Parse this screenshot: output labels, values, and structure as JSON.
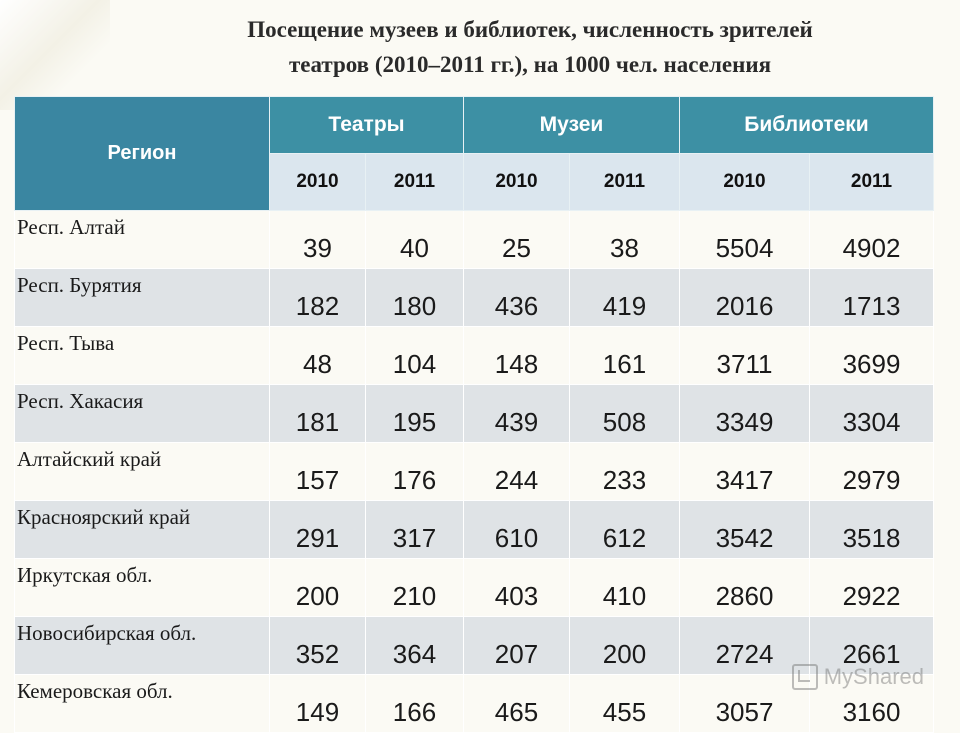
{
  "title": {
    "line1": "Посещение музеев и библиотек, численность зрителей",
    "line2": "театров (2010–2011 гг.), на 1000 чел. населения"
  },
  "table": {
    "region_header": "Регион",
    "groups": [
      "Театры",
      "Музеи",
      "Библиотеки"
    ],
    "years": [
      "2010",
      "2011",
      "2010",
      "2011",
      "2010",
      "2011"
    ],
    "rows": [
      {
        "region": "Респ. Алтай",
        "values": [
          "39",
          "40",
          "25",
          "38",
          "5504",
          "4902"
        ]
      },
      {
        "region": "Респ. Бурятия",
        "values": [
          "182",
          "180",
          "436",
          "419",
          "2016",
          "1713"
        ]
      },
      {
        "region": "Респ. Тыва",
        "values": [
          "48",
          "104",
          "148",
          "161",
          "3711",
          "3699"
        ]
      },
      {
        "region": "Респ. Хакасия",
        "values": [
          "181",
          "195",
          "439",
          "508",
          "3349",
          "3304"
        ]
      },
      {
        "region": "Алтайский край",
        "values": [
          "157",
          "176",
          "244",
          "233",
          "3417",
          "2979"
        ]
      },
      {
        "region": "Красноярский край",
        "values": [
          "291",
          "317",
          "610",
          "612",
          "3542",
          "3518"
        ]
      },
      {
        "region": "Иркутская обл.",
        "values": [
          "200",
          "210",
          "403",
          "410",
          "2860",
          "2922"
        ]
      },
      {
        "region": "Новосибирская обл.",
        "values": [
          "352",
          "364",
          "207",
          "200",
          "2724",
          "2661"
        ]
      },
      {
        "region": "Кемеровская обл.",
        "values": [
          "149",
          "166",
          "465",
          "455",
          "3057",
          "3160"
        ]
      }
    ]
  },
  "watermark": "MyShared",
  "colors": {
    "header": "#3d90a4",
    "year_row": "#dbe6ee",
    "stripe": "#dfe3e6"
  }
}
